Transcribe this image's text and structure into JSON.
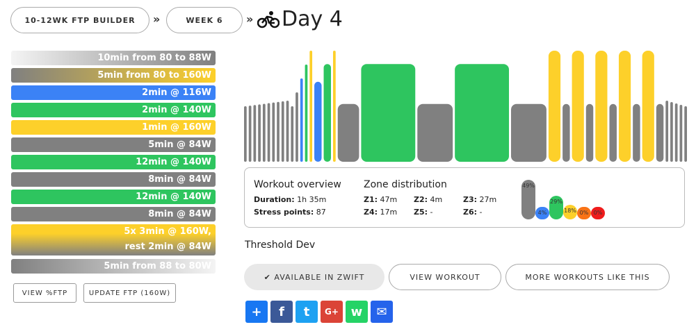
{
  "breadcrumb": {
    "plan": "10-12WK FTP BUILDER",
    "week": "WEEK 6",
    "separator": "»",
    "day": "Day 4"
  },
  "intervals": [
    {
      "label": "10min from 80 to 88W",
      "style": "ramp-grey"
    },
    {
      "label": "5min from 80 to 160W",
      "style": "ramp-yellow"
    },
    {
      "label": "2min @ 116W",
      "style": "blue"
    },
    {
      "label": "2min @ 140W",
      "style": "green"
    },
    {
      "label": "1min @ 160W",
      "style": "yellow"
    },
    {
      "label": "5min @ 84W",
      "style": "grey"
    },
    {
      "label": "12min @ 140W",
      "style": "green"
    },
    {
      "label": "8min @ 84W",
      "style": "grey"
    },
    {
      "label": "12min @ 140W",
      "style": "green"
    },
    {
      "label": "8min @ 84W",
      "style": "grey"
    },
    {
      "label_line1": "5x 3min @ 160W,",
      "label_line2": "rest 2min @ 84W",
      "style": "repeat"
    },
    {
      "label": "5min from 88 to 80W",
      "style": "ramp-down"
    }
  ],
  "left_buttons": {
    "view_ftp": "VIEW %FTP",
    "update_ftp": "UPDATE FTP (160W)"
  },
  "overview": {
    "title": "Workout overview",
    "duration_label": "Duration:",
    "duration_value": "1h 35m",
    "stress_label": "Stress points:",
    "stress_value": "87",
    "zone_title": "Zone distribution",
    "zones": [
      {
        "label": "Z1:",
        "value": "47m"
      },
      {
        "label": "Z2:",
        "value": "4m"
      },
      {
        "label": "Z3:",
        "value": "27m"
      },
      {
        "label": "Z4:",
        "value": "17m"
      },
      {
        "label": "Z5:",
        "value": "-"
      },
      {
        "label": "Z6:",
        "value": "-"
      }
    ],
    "zone_percents": [
      {
        "label": "49%",
        "value": 49,
        "color": "#808080"
      },
      {
        "label": "4%",
        "value": 4,
        "color": "#3b82f6"
      },
      {
        "label": "29%",
        "value": 29,
        "color": "#2ec55f"
      },
      {
        "label": "18%",
        "value": 18,
        "color": "#fdd02a"
      },
      {
        "label": "0%",
        "value": 0,
        "color": "#f97316"
      },
      {
        "label": "0%",
        "value": 0,
        "color": "#ef1c1c"
      }
    ]
  },
  "category": "Threshold Dev",
  "actions": {
    "zwift": "✔ AVAILABLE IN ZWIFT",
    "view_workout": "VIEW WORKOUT",
    "more": "MORE WORKOUTS LIKE THIS"
  },
  "share_icons": [
    {
      "name": "share-plus-icon",
      "color": "#1877f2",
      "glyph": "+"
    },
    {
      "name": "facebook-icon",
      "color": "#3b5998",
      "glyph": "f"
    },
    {
      "name": "twitter-icon",
      "color": "#1da1f2",
      "glyph": "t"
    },
    {
      "name": "google-plus-icon",
      "color": "#db4437",
      "glyph": "G+"
    },
    {
      "name": "whatsapp-icon",
      "color": "#25d366",
      "glyph": "w"
    },
    {
      "name": "email-icon",
      "color": "#2563eb",
      "glyph": "✉"
    }
  ],
  "colors": {
    "grey": "#808080",
    "blue": "#3b82f6",
    "green": "#2ec55f",
    "yellow": "#fdd02a"
  },
  "chart_data": {
    "type": "bar",
    "description_unit": "relative power (%FTP)",
    "segments": [
      {
        "zone": "grey",
        "minutes": 10,
        "from": 50,
        "to": 55
      },
      {
        "zone": "ramp",
        "minutes": 5,
        "from": 50,
        "to": 100
      },
      {
        "zone": "blue",
        "minutes": 2,
        "power": 72
      },
      {
        "zone": "green",
        "minutes": 2,
        "power": 88
      },
      {
        "zone": "yellow",
        "minutes": 1,
        "power": 100
      },
      {
        "zone": "grey",
        "minutes": 5,
        "power": 52
      },
      {
        "zone": "green",
        "minutes": 12,
        "power": 88
      },
      {
        "zone": "grey",
        "minutes": 8,
        "power": 52
      },
      {
        "zone": "green",
        "minutes": 12,
        "power": 88
      },
      {
        "zone": "grey",
        "minutes": 8,
        "power": 52
      },
      {
        "zone": "yellow",
        "minutes": 3,
        "power": 100
      },
      {
        "zone": "grey",
        "minutes": 2,
        "power": 52
      },
      {
        "zone": "yellow",
        "minutes": 3,
        "power": 100
      },
      {
        "zone": "grey",
        "minutes": 2,
        "power": 52
      },
      {
        "zone": "yellow",
        "minutes": 3,
        "power": 100
      },
      {
        "zone": "grey",
        "minutes": 2,
        "power": 52
      },
      {
        "zone": "yellow",
        "minutes": 3,
        "power": 100
      },
      {
        "zone": "grey",
        "minutes": 2,
        "power": 52
      },
      {
        "zone": "yellow",
        "minutes": 3,
        "power": 100
      },
      {
        "zone": "grey",
        "minutes": 2,
        "power": 52
      },
      {
        "zone": "grey",
        "minutes": 5,
        "from": 55,
        "to": 50
      }
    ]
  }
}
